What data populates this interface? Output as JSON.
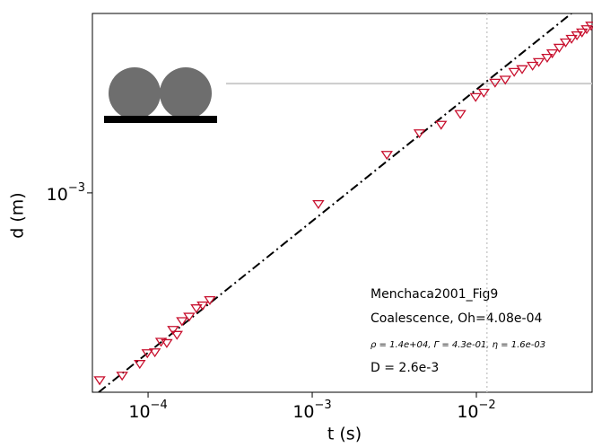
{
  "chart_data": {
    "type": "scatter",
    "x_label": "t (s)",
    "y_label": "d (m)",
    "x_log": true,
    "y_log": true,
    "xlim": [
      4.58e-05,
      0.0507
    ],
    "ylim": [
      0.000175,
      0.0048
    ],
    "xticks": [
      {
        "value": 0.0001,
        "label": "10^{-4}"
      },
      {
        "value": 0.001,
        "label": "10^{-3}"
      },
      {
        "value": 0.01,
        "label": "10^{-2}"
      }
    ],
    "yticks": [
      {
        "value": 0.001,
        "label": "10^{-3}"
      }
    ],
    "series": [
      {
        "name": "Menchaca2001_Fig9",
        "color": "#c8102e",
        "marker": "triangle-down",
        "x": [
          5.07e-05,
          6.95e-05,
          8.9e-05,
          9.9e-05,
          0.00011,
          0.00012,
          0.00013,
          0.000142,
          0.00015,
          0.000161,
          0.000178,
          0.000197,
          0.000215,
          0.000238,
          0.00109,
          0.00285,
          0.0045,
          0.0061,
          0.00798,
          0.0099,
          0.0111,
          0.013,
          0.015,
          0.017,
          0.019,
          0.022,
          0.024,
          0.027,
          0.029,
          0.032,
          0.035,
          0.038,
          0.041,
          0.044,
          0.047,
          0.05
        ],
        "values": [
          0.000195,
          0.000203,
          0.000225,
          0.000247,
          0.000249,
          0.000273,
          0.00027,
          0.000303,
          0.00029,
          0.000327,
          0.00034,
          0.000366,
          0.000375,
          0.000393,
          0.00091,
          0.0014,
          0.00169,
          0.00182,
          0.002,
          0.00232,
          0.00241,
          0.00263,
          0.0027,
          0.00289,
          0.00296,
          0.00305,
          0.00315,
          0.00327,
          0.0034,
          0.00357,
          0.00374,
          0.00386,
          0.00398,
          0.00408,
          0.0042,
          0.00433
        ]
      }
    ],
    "fit_line": {
      "x": [
        5e-05,
        0.0379
      ],
      "values": [
        0.000175,
        0.0048
      ],
      "color": "#000000"
    },
    "vline": {
      "value": 0.0116,
      "color": "#cccccc"
    },
    "hline": {
      "value": 0.0026,
      "color": "#cccccc"
    },
    "annotations": [
      "Menchaca2001_Fig9",
      "Coalescence, Oh=4.08e-04",
      "ρ = 1.4e+04, Γ = 4.3e-01, η = 1.6e-03",
      "D = 2.6e-3"
    ]
  }
}
